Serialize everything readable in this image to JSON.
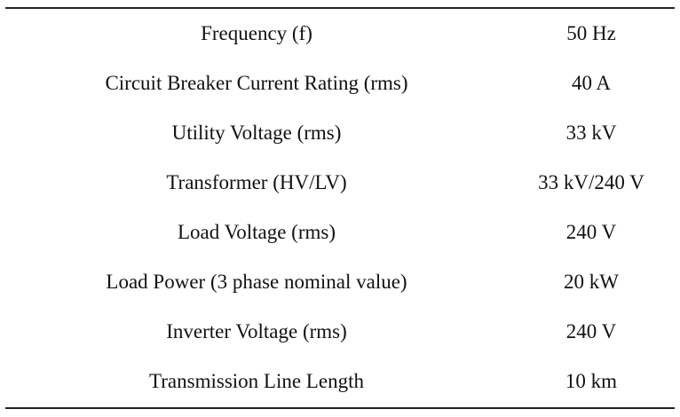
{
  "table": {
    "rows": [
      [
        "Frequency (f)",
        "50 Hz"
      ],
      [
        "Circuit Breaker Current Rating (rms)",
        "40 A"
      ],
      [
        "Utility Voltage (rms)",
        "33 kV"
      ],
      [
        "Transformer (HV/LV)",
        "33 kV/240 V"
      ],
      [
        "Load Voltage (rms)",
        "240 V"
      ],
      [
        "Load Power (3 phase nominal value)",
        "20 kW"
      ],
      [
        "Inverter Voltage (rms)",
        "240 V"
      ],
      [
        "Transmission Line Length",
        "10 km"
      ]
    ]
  }
}
